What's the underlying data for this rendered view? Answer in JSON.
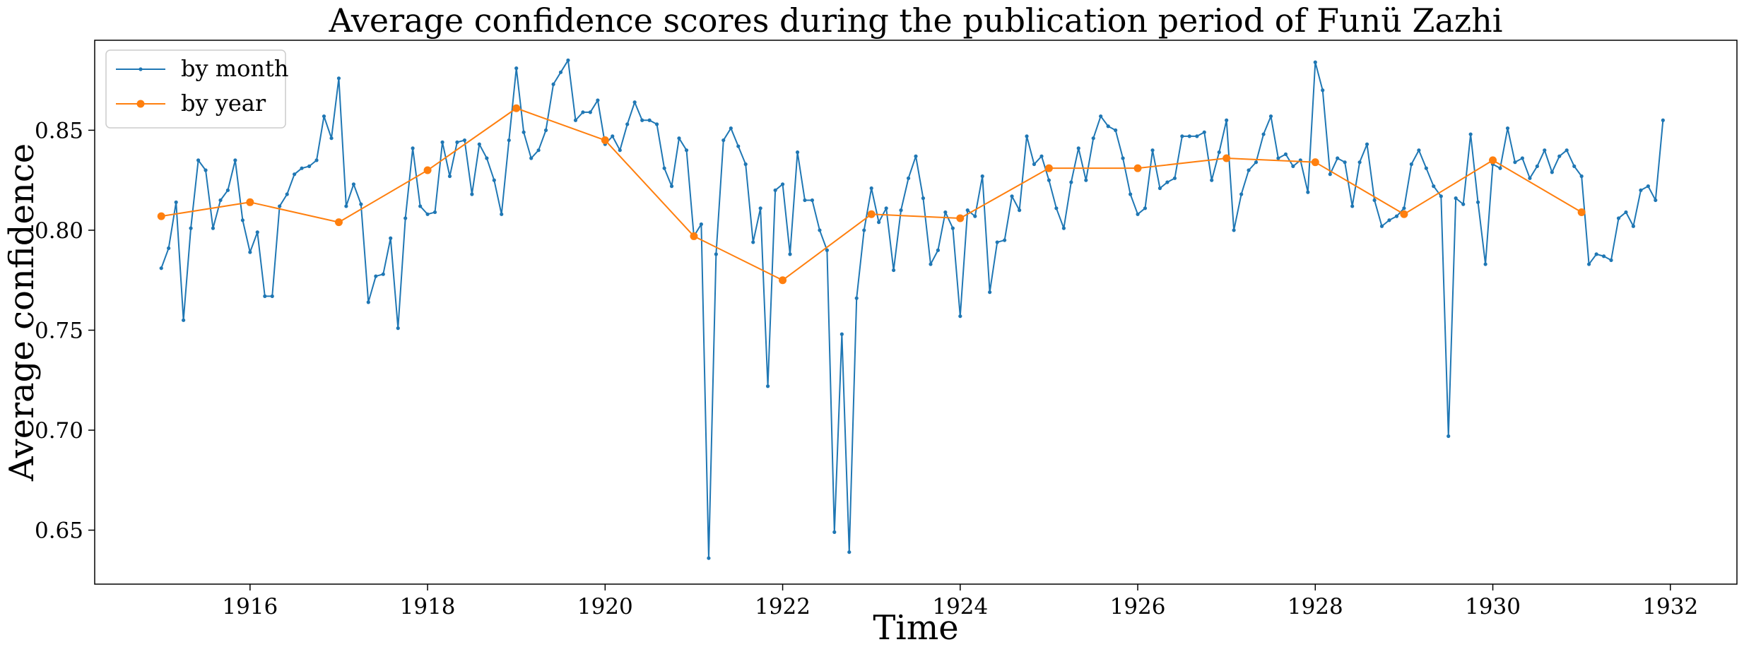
{
  "chart_data": {
    "type": "line",
    "title": "Average confidence scores during the publication period of Funü Zazhi",
    "xlabel": "Time",
    "ylabel": "Average confidence",
    "xlim": [
      1914.25,
      1932.75
    ],
    "ylim": [
      0.623,
      0.895
    ],
    "x_ticks": [
      1916,
      1918,
      1920,
      1922,
      1924,
      1926,
      1928,
      1930,
      1932
    ],
    "x_tick_labels": [
      "1916",
      "1918",
      "1920",
      "1922",
      "1924",
      "1926",
      "1928",
      "1930",
      "1932"
    ],
    "y_ticks": [
      0.65,
      0.7,
      0.75,
      0.8,
      0.85
    ],
    "y_tick_labels": [
      "0.65",
      "0.70",
      "0.75",
      "0.80",
      "0.85"
    ],
    "grid": false,
    "legend": {
      "position": "top-left"
    },
    "series": [
      {
        "name": "by month",
        "color": "#1f77b4",
        "marker": "small-dot",
        "x": [
          1915.0,
          1915.083,
          1915.167,
          1915.25,
          1915.333,
          1915.417,
          1915.5,
          1915.583,
          1915.667,
          1915.75,
          1915.833,
          1915.917,
          1916.0,
          1916.083,
          1916.167,
          1916.25,
          1916.333,
          1916.417,
          1916.5,
          1916.583,
          1916.667,
          1916.75,
          1916.833,
          1916.917,
          1917.0,
          1917.083,
          1917.167,
          1917.25,
          1917.333,
          1917.417,
          1917.5,
          1917.583,
          1917.667,
          1917.75,
          1917.833,
          1917.917,
          1918.0,
          1918.083,
          1918.167,
          1918.25,
          1918.333,
          1918.417,
          1918.5,
          1918.583,
          1918.667,
          1918.75,
          1918.833,
          1918.917,
          1919.0,
          1919.083,
          1919.167,
          1919.25,
          1919.333,
          1919.417,
          1919.5,
          1919.583,
          1919.667,
          1919.75,
          1919.833,
          1919.917,
          1920.0,
          1920.083,
          1920.167,
          1920.25,
          1920.333,
          1920.417,
          1920.5,
          1920.583,
          1920.667,
          1920.75,
          1920.833,
          1920.917,
          1921.0,
          1921.083,
          1921.167,
          1921.25,
          1921.333,
          1921.417,
          1921.5,
          1921.583,
          1921.667,
          1921.75,
          1921.833,
          1921.917,
          1922.0,
          1922.083,
          1922.167,
          1922.25,
          1922.333,
          1922.417,
          1922.5,
          1922.583,
          1922.667,
          1922.75,
          1922.833,
          1922.917,
          1923.0,
          1923.083,
          1923.167,
          1923.25,
          1923.333,
          1923.417,
          1923.5,
          1923.583,
          1923.667,
          1923.75,
          1923.833,
          1923.917,
          1924.0,
          1924.083,
          1924.167,
          1924.25,
          1924.333,
          1924.417,
          1924.5,
          1924.583,
          1924.667,
          1924.75,
          1924.833,
          1924.917,
          1925.0,
          1925.083,
          1925.167,
          1925.25,
          1925.333,
          1925.417,
          1925.5,
          1925.583,
          1925.667,
          1925.75,
          1925.833,
          1925.917,
          1926.0,
          1926.083,
          1926.167,
          1926.25,
          1926.333,
          1926.417,
          1926.5,
          1926.583,
          1926.667,
          1926.75,
          1926.833,
          1926.917,
          1927.0,
          1927.083,
          1927.167,
          1927.25,
          1927.333,
          1927.417,
          1927.5,
          1927.583,
          1927.667,
          1927.75,
          1927.833,
          1927.917,
          1928.0,
          1928.083,
          1928.167,
          1928.25,
          1928.333,
          1928.417,
          1928.5,
          1928.583,
          1928.667,
          1928.75,
          1928.833,
          1928.917,
          1929.0,
          1929.083,
          1929.167,
          1929.25,
          1929.333,
          1929.417,
          1929.5,
          1929.583,
          1929.667,
          1929.75,
          1929.833,
          1929.917,
          1930.0,
          1930.083,
          1930.167,
          1930.25,
          1930.333,
          1930.417,
          1930.5,
          1930.583,
          1930.667,
          1930.75,
          1930.833,
          1930.917,
          1931.0,
          1931.083,
          1931.167,
          1931.25,
          1931.333,
          1931.417,
          1931.5,
          1931.583,
          1931.667,
          1931.75,
          1931.833,
          1931.917
        ],
        "y": [
          0.781,
          0.791,
          0.814,
          0.755,
          0.801,
          0.835,
          0.83,
          0.801,
          0.815,
          0.82,
          0.835,
          0.805,
          0.789,
          0.799,
          0.767,
          0.767,
          0.812,
          0.818,
          0.828,
          0.831,
          0.832,
          0.835,
          0.857,
          0.846,
          0.876,
          0.812,
          0.823,
          0.813,
          0.764,
          0.777,
          0.778,
          0.796,
          0.751,
          0.806,
          0.841,
          0.812,
          0.808,
          0.809,
          0.844,
          0.827,
          0.844,
          0.845,
          0.818,
          0.843,
          0.836,
          0.825,
          0.808,
          0.845,
          0.881,
          0.849,
          0.836,
          0.84,
          0.85,
          0.873,
          0.879,
          0.885,
          0.855,
          0.859,
          0.859,
          0.865,
          0.843,
          0.847,
          0.84,
          0.853,
          0.864,
          0.855,
          0.855,
          0.853,
          0.831,
          0.822,
          0.846,
          0.84,
          0.797,
          0.803,
          0.636,
          0.788,
          0.845,
          0.851,
          0.842,
          0.833,
          0.794,
          0.811,
          0.722,
          0.82,
          0.823,
          0.788,
          0.839,
          0.815,
          0.815,
          0.8,
          0.79,
          0.649,
          0.748,
          0.639,
          0.766,
          0.8,
          0.821,
          0.804,
          0.811,
          0.78,
          0.81,
          0.826,
          0.837,
          0.816,
          0.783,
          0.79,
          0.809,
          0.801,
          0.757,
          0.81,
          0.807,
          0.827,
          0.769,
          0.794,
          0.795,
          0.817,
          0.81,
          0.847,
          0.833,
          0.837,
          0.825,
          0.811,
          0.801,
          0.824,
          0.841,
          0.825,
          0.846,
          0.857,
          0.852,
          0.85,
          0.836,
          0.818,
          0.808,
          0.811,
          0.84,
          0.821,
          0.824,
          0.826,
          0.847,
          0.847,
          0.847,
          0.849,
          0.825,
          0.839,
          0.855,
          0.8,
          0.818,
          0.83,
          0.834,
          0.848,
          0.857,
          0.836,
          0.838,
          0.832,
          0.835,
          0.819,
          0.884,
          0.87,
          0.828,
          0.836,
          0.834,
          0.812,
          0.834,
          0.843,
          0.815,
          0.802,
          0.805,
          0.807,
          0.811,
          0.833,
          0.84,
          0.831,
          0.822,
          0.817,
          0.697,
          0.816,
          0.813,
          0.848,
          0.814,
          0.783,
          0.833,
          0.831,
          0.851,
          0.834,
          0.836,
          0.826,
          0.832,
          0.84,
          0.829,
          0.837,
          0.84,
          0.832,
          0.827,
          0.783,
          0.788,
          0.787,
          0.785,
          0.806,
          0.809,
          0.802,
          0.82,
          0.822,
          0.815,
          0.855
        ]
      },
      {
        "name": "by year",
        "color": "#ff7f0e",
        "marker": "dot",
        "x": [
          1915,
          1916,
          1917,
          1918,
          1919,
          1920,
          1921,
          1922,
          1923,
          1924,
          1925,
          1926,
          1927,
          1928,
          1929,
          1930,
          1931
        ],
        "y": [
          0.807,
          0.814,
          0.804,
          0.83,
          0.861,
          0.845,
          0.797,
          0.775,
          0.808,
          0.806,
          0.831,
          0.831,
          0.836,
          0.834,
          0.808,
          0.835,
          0.809
        ]
      }
    ]
  }
}
